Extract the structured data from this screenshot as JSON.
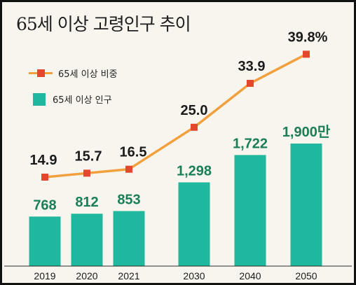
{
  "title": "65세 이상 고령인구 추이",
  "colors": {
    "bar": "#1fb89e",
    "bar_label": "#1a7f52",
    "line": "#f2a03d",
    "marker": "#e4472d",
    "background": "#f7f5ee",
    "border": "#111111"
  },
  "legend": {
    "rate_label": "65세 이상 비중",
    "pop_label": "65세 이상 인구"
  },
  "chart_data": {
    "type": "bar",
    "title": "65세 이상 고령인구 추이",
    "categories": [
      "2019",
      "2020",
      "2021",
      "2030",
      "2040",
      "2050"
    ],
    "legend_position": "top-left",
    "series": [
      {
        "name": "65세 이상 인구",
        "type": "bar",
        "values": [
          768,
          812,
          853,
          1298,
          1722,
          1900
        ],
        "labels": [
          "768",
          "812",
          "853",
          "1,298",
          "1,722",
          "1,900만"
        ]
      },
      {
        "name": "65세 이상 비중",
        "type": "line",
        "values": [
          14.9,
          15.7,
          16.5,
          25.0,
          33.9,
          39.8
        ],
        "labels": [
          "14.9",
          "15.7",
          "16.5",
          "25.0",
          "33.9",
          "39.8%"
        ]
      }
    ]
  }
}
